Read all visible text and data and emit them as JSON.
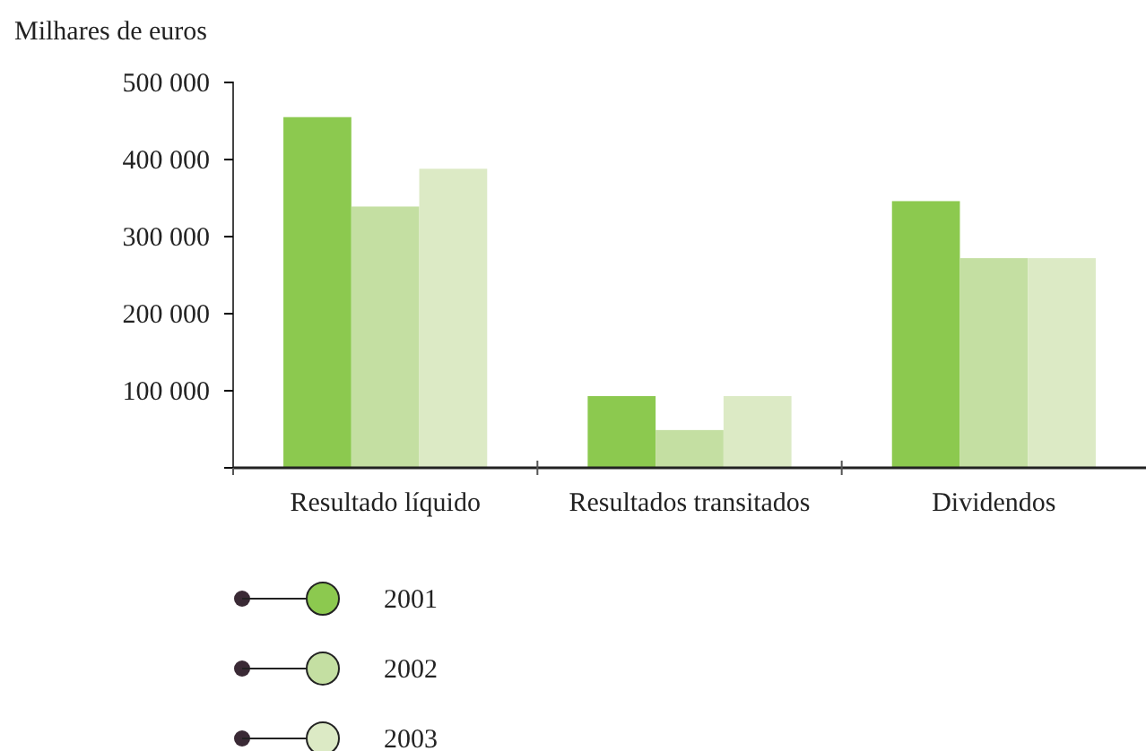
{
  "chart_data": {
    "type": "bar",
    "ylabel": "Milhares de euros",
    "categories": [
      "Resultado líquido",
      "Resultados transitados",
      "Dividendos"
    ],
    "series": [
      {
        "name": "2001",
        "color": "#8cc94f",
        "values": [
          455000,
          93000,
          346000
        ]
      },
      {
        "name": "2002",
        "color": "#c4dfa2",
        "values": [
          339000,
          49000,
          272000
        ]
      },
      {
        "name": "2003",
        "color": "#dceac5",
        "values": [
          388000,
          93000,
          272000
        ]
      }
    ],
    "ylim": [
      0,
      500000
    ],
    "yticks": [
      {
        "value": 0,
        "label": null
      },
      {
        "value": 100000,
        "label": "100 000"
      },
      {
        "value": 200000,
        "label": "200 000"
      },
      {
        "value": 300000,
        "label": "300 000"
      },
      {
        "value": 400000,
        "label": "400 000"
      },
      {
        "value": 500000,
        "label": "500 000"
      }
    ],
    "grid": false,
    "legend": "bottom left"
  }
}
